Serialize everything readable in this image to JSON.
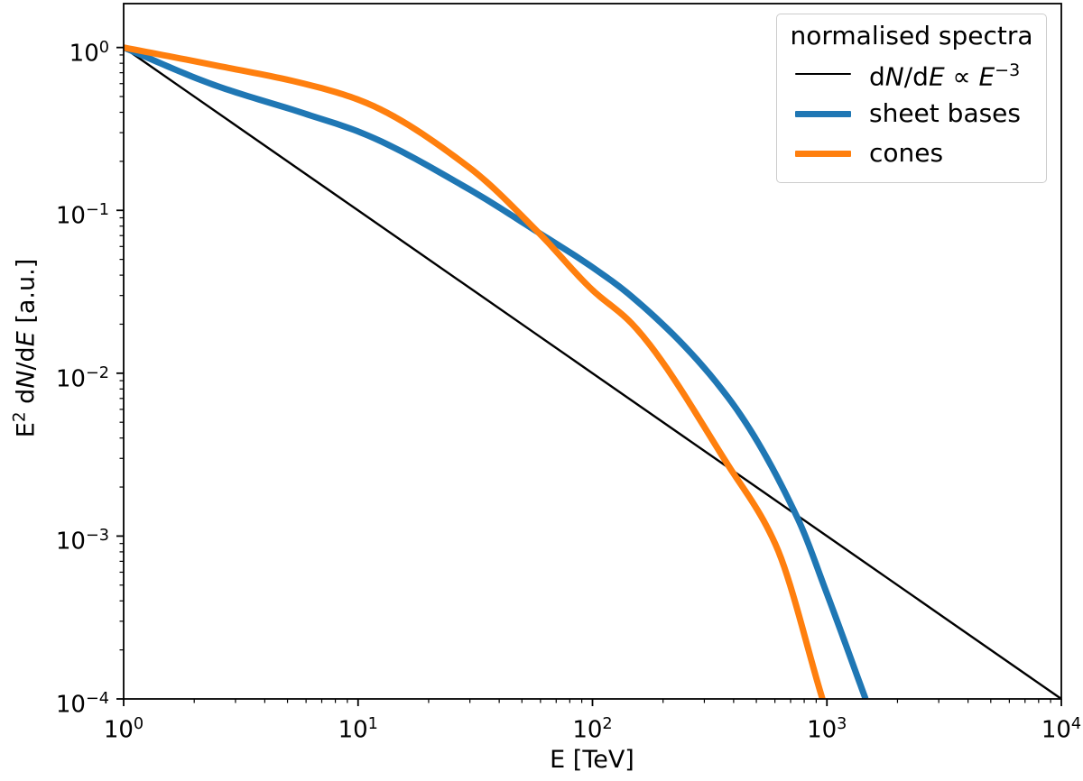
{
  "colors": {
    "background": "#ffffff",
    "frame": "#000000",
    "power_law": "#000000",
    "sheet_bases": "#1f77b4",
    "cones": "#ff7f0e",
    "legend_border": "#cccccc"
  },
  "tick_base": "10",
  "xlabel": "E [TeV]",
  "ylabel_plain": "E² dN/dE [a.u.]",
  "ylabel_segments": [
    {
      "t": "E"
    },
    {
      "t": "2",
      "sup": 1
    },
    {
      "t": " d"
    },
    {
      "t": "N",
      "i": 1
    },
    {
      "t": "/d"
    },
    {
      "t": "E",
      "i": 1
    },
    {
      "t": " [a.u.]"
    }
  ],
  "legend": {
    "title": "normalised spectra",
    "entries": [
      {
        "plain": "dN/dE ∝ E⁻³",
        "segments": [
          {
            "t": "d"
          },
          {
            "t": "N",
            "i": 1
          },
          {
            "t": "/d"
          },
          {
            "t": "E",
            "i": 1
          },
          {
            "t": " ∝ "
          },
          {
            "t": "E",
            "i": 1
          },
          {
            "t": "−3",
            "sup": 1
          }
        ],
        "color": "#000000",
        "line_width": 2.4
      },
      {
        "plain": "sheet bases",
        "segments": [
          {
            "t": "sheet bases"
          }
        ],
        "color": "#1f77b4",
        "line_width": 7
      },
      {
        "plain": "cones",
        "segments": [
          {
            "t": "cones"
          }
        ],
        "color": "#ff7f0e",
        "line_width": 7
      }
    ]
  },
  "chart_data": {
    "type": "line",
    "xscale": "log",
    "yscale": "log",
    "xlabel": "E [TeV]",
    "ylabel": "E^2 dN/dE [a.u.]",
    "xlim": [
      1,
      10000
    ],
    "ylim": [
      0.0001,
      1.86
    ],
    "x_ticks": [
      1,
      10,
      100,
      1000,
      10000
    ],
    "y_ticks": [
      1,
      0.1,
      0.01,
      0.001,
      0.0001
    ],
    "grid": false,
    "legend_title": "normalised spectra",
    "legend_position": "upper right",
    "series": [
      {
        "name": "dN/dE ∝ E^−3",
        "color": "#000000",
        "width": 2.4,
        "x": [
          1,
          10000
        ],
        "y": [
          1.0,
          0.0001
        ]
      },
      {
        "name": "sheet bases",
        "color": "#1f77b4",
        "width": 7,
        "x": [
          1,
          2.43,
          5.88,
          10.3,
          29.7,
          58.8,
          100,
          146,
          378,
          753,
          1000,
          1462
        ],
        "y": [
          1.0,
          0.589,
          0.394,
          0.3,
          0.135,
          0.0731,
          0.0447,
          0.0298,
          0.00713,
          0.00127,
          0.000443,
          0.0001
        ]
      },
      {
        "name": "cones",
        "color": "#ff7f0e",
        "width": 7,
        "x": [
          1,
          2.43,
          5.88,
          10.3,
          29.7,
          58.8,
          100,
          146,
          378,
          603,
          957
        ],
        "y": [
          1.0,
          0.78,
          0.6,
          0.471,
          0.184,
          0.0731,
          0.0324,
          0.0204,
          0.00274,
          0.000891,
          0.0001
        ]
      }
    ]
  }
}
